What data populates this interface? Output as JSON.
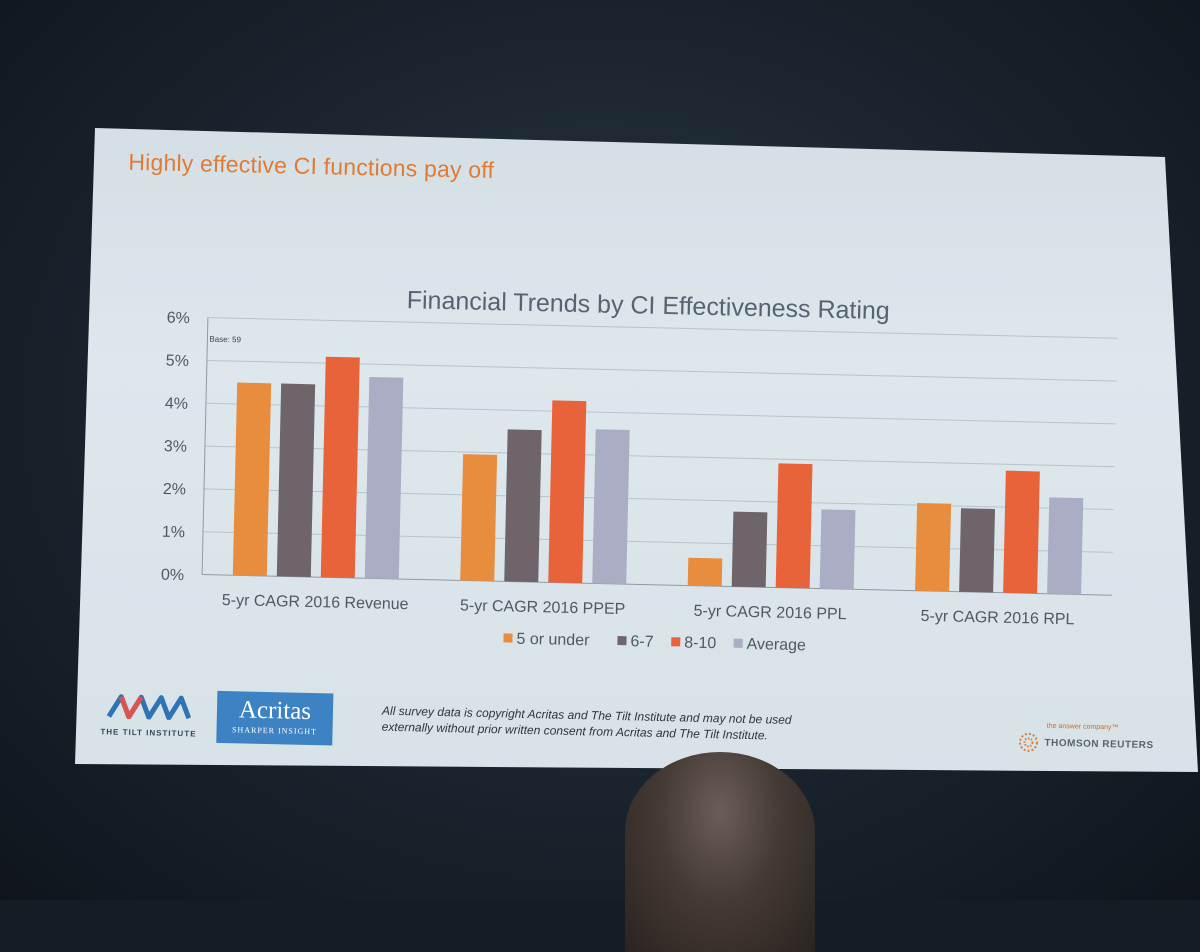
{
  "slide": {
    "title": "Highly effective CI functions pay off",
    "footer": {
      "tilt_institute": "THE TILT INSTITUTE",
      "acritas_name": "Acritas",
      "acritas_tagline": "SHARPER INSIGHT",
      "copyright_line1": "All survey data is copyright Acritas and The Tilt Institute and may not be used",
      "copyright_line2": "externally without prior written consent from Acritas and The Tilt Institute.",
      "tr_tagline": "the answer company™",
      "tr_name": "THOMSON REUTERS"
    }
  },
  "chart_data": {
    "type": "bar",
    "title": "Financial Trends by CI Effectiveness Rating",
    "annotation": "Base: 59",
    "categories": [
      "5-yr CAGR 2016 Revenue",
      "5-yr CAGR 2016 PPEP",
      "5-yr CAGR 2016 PPL",
      "5-yr CAGR 2016 RPL"
    ],
    "series": [
      {
        "name": "5 or under",
        "color": "#e88d3d",
        "values": [
          4.5,
          2.95,
          0.65,
          2.05
        ]
      },
      {
        "name": "6-7",
        "color": "#6e6469",
        "values": [
          4.5,
          3.55,
          1.75,
          1.95
        ]
      },
      {
        "name": "8-10",
        "color": "#e8623a",
        "values": [
          5.15,
          4.25,
          2.9,
          2.85
        ]
      },
      {
        "name": "Average",
        "color": "#aaadc4",
        "values": [
          4.7,
          3.6,
          1.85,
          2.25
        ]
      }
    ],
    "ylim": [
      0,
      6
    ],
    "yticks": [
      "0%",
      "1%",
      "2%",
      "3%",
      "4%",
      "5%",
      "6%"
    ],
    "xlabel": "",
    "ylabel": "",
    "grid": true,
    "legend_position": "bottom"
  }
}
